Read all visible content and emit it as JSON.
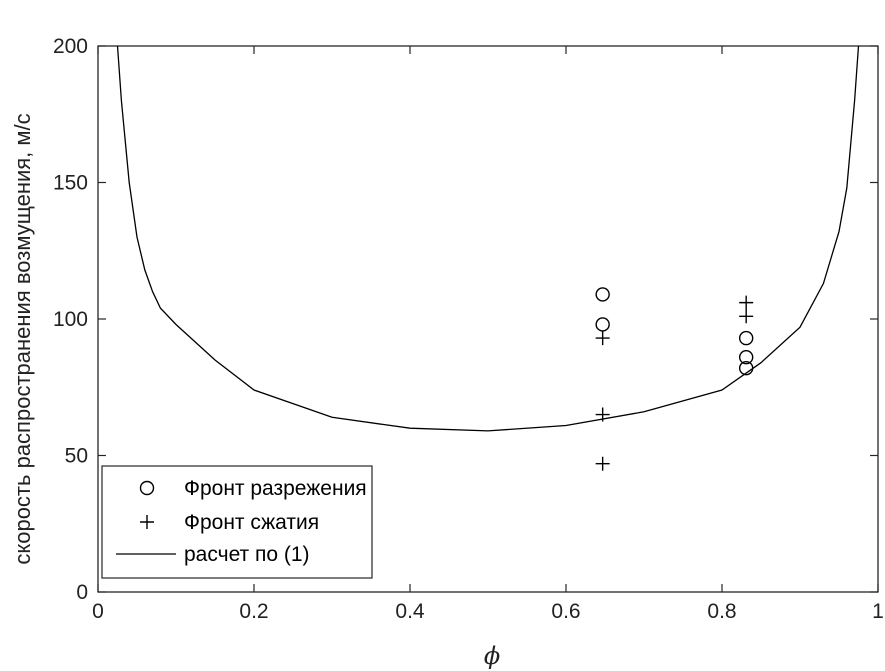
{
  "chart_data": {
    "type": "scatter",
    "title": "",
    "xlabel": "ϕ",
    "ylabel": "скорость распространения возмущения, м/с",
    "xlim": [
      0,
      1
    ],
    "ylim": [
      0,
      200
    ],
    "xticks": [
      "0",
      "0.2",
      "0.4",
      "0.6",
      "0.8",
      "1"
    ],
    "yticks": [
      "0",
      "50",
      "100",
      "150",
      "200"
    ],
    "grid": false,
    "legend_position": "bottom-left",
    "series": [
      {
        "name": "Фронт разрежения",
        "marker": "circle",
        "color": "#000000",
        "x": [
          0.647,
          0.647,
          0.831,
          0.831,
          0.831
        ],
        "y": [
          109,
          98,
          93,
          86,
          82
        ]
      },
      {
        "name": "Фронт сжатия",
        "marker": "plus",
        "color": "#000000",
        "x": [
          0.647,
          0.647,
          0.647,
          0.831,
          0.831
        ],
        "y": [
          93,
          65,
          47,
          106,
          101
        ]
      },
      {
        "name": "расчет по (1)",
        "marker": "line",
        "color": "#000000",
        "x": [
          0.025,
          0.03,
          0.04,
          0.05,
          0.06,
          0.07,
          0.08,
          0.1,
          0.15,
          0.2,
          0.3,
          0.4,
          0.5,
          0.6,
          0.7,
          0.8,
          0.85,
          0.9,
          0.93,
          0.95,
          0.96,
          0.97,
          0.975
        ],
        "y": [
          200,
          180,
          150,
          130,
          118,
          110,
          104,
          98,
          85,
          74,
          64,
          60,
          59,
          61,
          66,
          74,
          84,
          97,
          113,
          132,
          148,
          180,
          200
        ]
      }
    ]
  }
}
